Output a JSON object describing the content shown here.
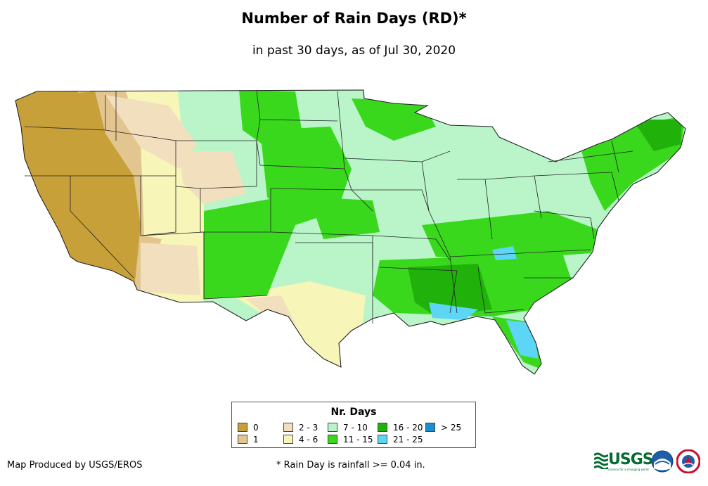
{
  "title": "Number of Rain Days (RD)*",
  "subtitle": "in past 30 days, as of Jul 30, 2020",
  "legend": {
    "title": "Nr. Days",
    "items": [
      {
        "label": "0",
        "color": "#c8a03a"
      },
      {
        "label": "1",
        "color": "#e3c58f"
      },
      {
        "label": "2 - 3",
        "color": "#f2dfbe"
      },
      {
        "label": "4 - 6",
        "color": "#f7f5b8"
      },
      {
        "label": "7 - 10",
        "color": "#b9f5c9"
      },
      {
        "label": "11 - 15",
        "color": "#39d81d"
      },
      {
        "label": "16 - 20",
        "color": "#20b20a"
      },
      {
        "label": "21 - 25",
        "color": "#5cd6f4"
      },
      {
        "label": "> 25",
        "color": "#1a8fcf"
      }
    ]
  },
  "credit": "Map Produced by USGS/EROS",
  "footnote": "* Rain Day is rainfall >= 0.04 in.",
  "logos": {
    "usgs": "USGS",
    "usgs_tagline": "science for a changing world",
    "noaa": "noaa-logo",
    "nws": "nws-logo"
  }
}
